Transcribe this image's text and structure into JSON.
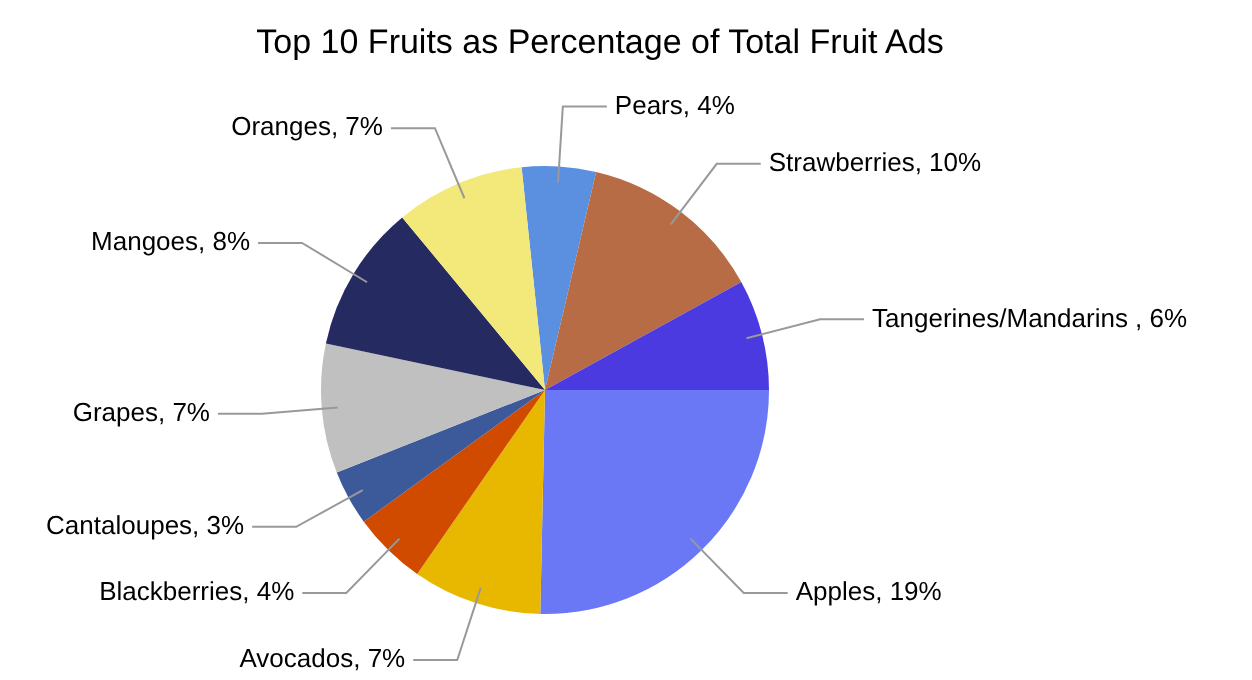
{
  "chart_data": {
    "type": "pie",
    "title": "Top 10 Fruits as Percentage of Total Fruit Ads",
    "categories": [
      "Pears",
      "Strawberries",
      "Tangerines/Mandarins ",
      "Apples",
      "Avocados",
      "Blackberries",
      "Cantaloupes",
      "Grapes",
      "Mangoes",
      "Oranges"
    ],
    "values": [
      4,
      10,
      6,
      19,
      7,
      4,
      3,
      7,
      8,
      7
    ],
    "value_labels": [
      "4%",
      "10%",
      "6%",
      "19%",
      "7%",
      "4%",
      "3%",
      "7%",
      "8%",
      "7%"
    ],
    "colors": [
      "#5b8fe0",
      "#b86c45",
      "#4b3ae0",
      "#6b78f5",
      "#e8b800",
      "#d04a00",
      "#3c5a9a",
      "#c0c0c0",
      "#252a60",
      "#f2e97a"
    ]
  }
}
